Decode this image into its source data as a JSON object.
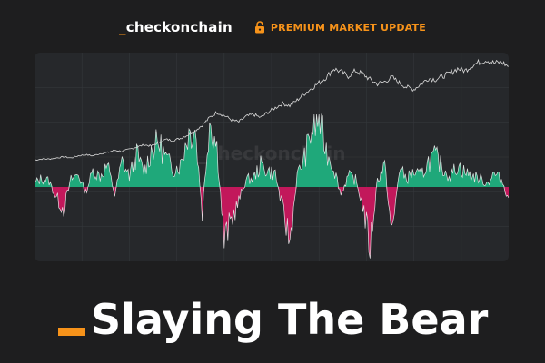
{
  "header": {
    "brand_prefix": "_",
    "brand_name": "checkonchain",
    "premium_label": "PREMIUM MARKET UPDATE",
    "accent_color": "#f7931a"
  },
  "chart_data": {
    "type": "area",
    "watermark": "_checkonchain",
    "title": "",
    "xlabel": "",
    "ylabel": "",
    "grid": true,
    "ylim": [
      -1,
      1
    ],
    "price_range": [
      0,
      1
    ],
    "colors": {
      "price_line": "#d9d9d9",
      "positive_area": "#1fa87a",
      "negative_area": "#c2185b",
      "oscillator_line": "#f2f2f2",
      "grid": "#34373b"
    },
    "series": [
      {
        "role": "price",
        "values": [
          0.08,
          0.09,
          0.09,
          0.1,
          0.11,
          0.1,
          0.12,
          0.13,
          0.12,
          0.14,
          0.15,
          0.17,
          0.16,
          0.18,
          0.2,
          0.22,
          0.21,
          0.24,
          0.27,
          0.26,
          0.28,
          0.31,
          0.35,
          0.4,
          0.47,
          0.52,
          0.49,
          0.45,
          0.43,
          0.48,
          0.5,
          0.47,
          0.52,
          0.56,
          0.6,
          0.58,
          0.63,
          0.69,
          0.74,
          0.79,
          0.84,
          0.92,
          0.89,
          0.85,
          0.9,
          0.87,
          0.82,
          0.78,
          0.8,
          0.84,
          0.79,
          0.75,
          0.73,
          0.78,
          0.83,
          0.82,
          0.85,
          0.88,
          0.92,
          0.9,
          0.95,
          0.98,
          1.0,
          0.97,
          0.98,
          0.94
        ]
      },
      {
        "role": "oscillator",
        "values": [
          0.05,
          0.12,
          0.08,
          -0.15,
          -0.3,
          0.1,
          0.18,
          -0.08,
          0.22,
          0.15,
          0.3,
          -0.1,
          0.35,
          0.15,
          0.45,
          0.2,
          0.5,
          0.62,
          0.4,
          0.25,
          0.3,
          0.72,
          0.82,
          -0.35,
          0.95,
          0.55,
          -0.75,
          -0.45,
          -0.2,
          0.1,
          0.12,
          0.3,
          0.22,
          0.18,
          -0.3,
          -0.75,
          0.15,
          0.4,
          0.78,
          0.95,
          0.5,
          0.28,
          -0.1,
          0.15,
          0.1,
          -0.25,
          -0.82,
          0.1,
          0.3,
          -0.68,
          0.25,
          0.12,
          0.2,
          0.15,
          0.35,
          0.42,
          0.25,
          0.15,
          0.3,
          0.2,
          0.15,
          0.12,
          0.05,
          0.18,
          0.1,
          -0.15
        ]
      }
    ]
  },
  "title": {
    "prefix": "_",
    "text": "Slaying The Bear"
  }
}
